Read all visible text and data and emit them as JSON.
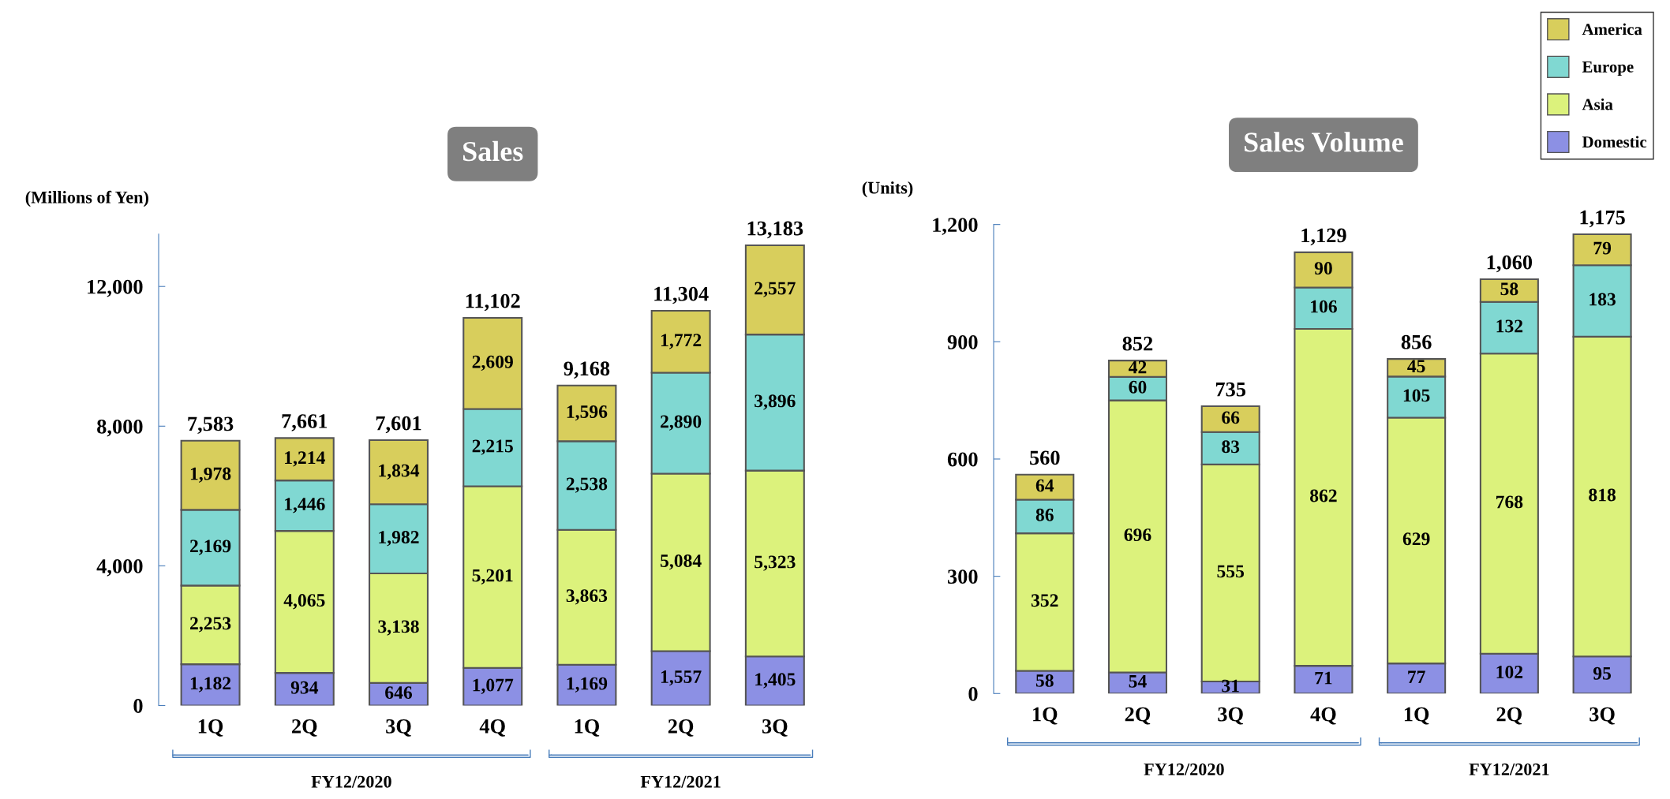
{
  "chart_data": [
    {
      "type": "bar",
      "stacked": true,
      "title": "Sales",
      "ylabel": "(Millions of Yen)",
      "categories": [
        "1Q",
        "2Q",
        "3Q",
        "4Q",
        "1Q",
        "2Q",
        "3Q"
      ],
      "ylim": [
        0,
        13500
      ],
      "yticks": [
        0,
        {
          "value": 4000,
          "label": "4,000"
        },
        {
          "value": 8000,
          "label": "8,000"
        },
        {
          "value": 12000,
          "label": "12,000"
        }
      ],
      "series": [
        {
          "color": "#8c90e4",
          "values": [
            1182,
            934,
            646,
            1077,
            1169,
            1557,
            1405
          ],
          "value_labels": [
            "1,182",
            "934",
            "646",
            "1,077",
            "1,169",
            "1,557",
            "1,405"
          ]
        },
        {
          "color": "#dcf27c",
          "values": [
            2253,
            4065,
            3138,
            5201,
            3863,
            5084,
            5323
          ],
          "value_labels": [
            "2,253",
            "4,065",
            "3,138",
            "5,201",
            "3,863",
            "5,084",
            "5,323"
          ]
        },
        {
          "color": "#80d8d2",
          "values": [
            2169,
            1446,
            1982,
            2215,
            2538,
            2890,
            3896
          ],
          "value_labels": [
            "2,169",
            "1,446",
            "1,982",
            "2,215",
            "2,538",
            "2,890",
            "3,896"
          ]
        },
        {
          "color": "#d8ce5c",
          "values": [
            1978,
            1214,
            1834,
            2609,
            1596,
            1772,
            2557
          ],
          "value_labels": [
            "1,978",
            "1,214",
            "1,834",
            "2,609",
            "1,596",
            "1,772",
            "2,557"
          ]
        }
      ],
      "totals": [
        "7,583",
        "7,661",
        "7,601",
        "11,102",
        "9,168",
        "11,304",
        "13,183"
      ],
      "annotations": [
        "FY12/2020",
        "FY12/2021"
      ]
    },
    {
      "type": "bar",
      "stacked": true,
      "title": "Sales Volume",
      "ylabel": "(Units)",
      "categories": [
        "1Q",
        "2Q",
        "3Q",
        "4Q",
        "1Q",
        "2Q",
        "3Q"
      ],
      "ylim": [
        0,
        1200
      ],
      "yticks": [
        0,
        300,
        600,
        900,
        {
          "value": 1200,
          "label": "1,200"
        }
      ],
      "series": [
        {
          "name": "Domestic",
          "color": "#8c90e4",
          "values": [
            58,
            54,
            31,
            71,
            77,
            102,
            95
          ],
          "value_labels": [
            "58",
            "54",
            "31",
            "71",
            "77",
            "102",
            "95"
          ]
        },
        {
          "name": "Asia",
          "color": "#dcf27c",
          "values": [
            352,
            696,
            555,
            862,
            629,
            768,
            818
          ],
          "value_labels": [
            "352",
            "696",
            "555",
            "862",
            "629",
            "768",
            "818"
          ]
        },
        {
          "name": "Europe",
          "color": "#80d8d2",
          "values": [
            86,
            60,
            83,
            106,
            105,
            132,
            183
          ],
          "value_labels": [
            "86",
            "60",
            "83",
            "106",
            "105",
            "132",
            "183"
          ]
        },
        {
          "name": "America",
          "color": "#d8ce5c",
          "values": [
            64,
            42,
            66,
            90,
            45,
            58,
            79
          ],
          "value_labels": [
            "64",
            "42",
            "66",
            "90",
            "45",
            "58",
            "79"
          ]
        }
      ],
      "totals": [
        "560",
        "852",
        "735",
        "1,129",
        "856",
        "1,060",
        "1,175"
      ],
      "legend": "top right",
      "annotations": [
        "FY12/2020",
        "FY12/2021"
      ]
    }
  ]
}
